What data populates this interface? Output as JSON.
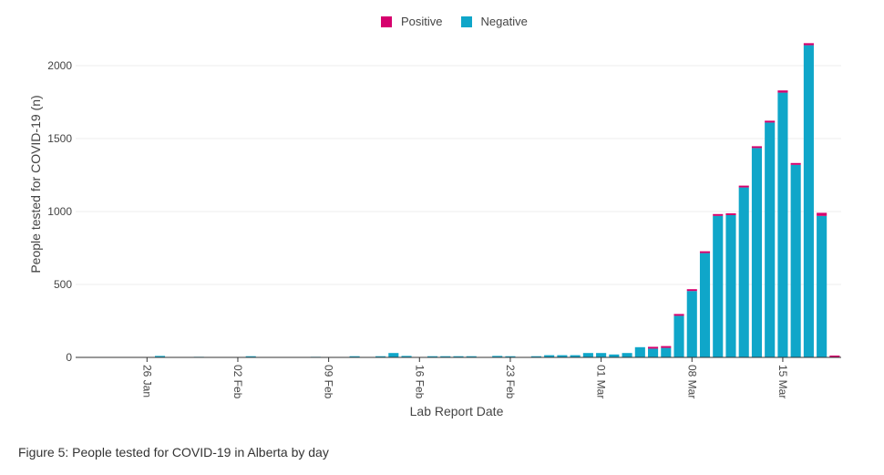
{
  "caption": "Figure 5: People tested for COVID-19 in Alberta by day",
  "colors": {
    "positive": "#d6006d",
    "negative": "#0fa6c9",
    "grid": "#eeeeee",
    "axis": "#333333"
  },
  "chart_data": {
    "type": "bar",
    "stacked": true,
    "xlabel": "Lab Report Date",
    "ylabel": "People tested for COVID-19 (n)",
    "ylim": [
      0,
      2200
    ],
    "yticks": [
      0,
      500,
      1000,
      1500,
      2000
    ],
    "legend": {
      "position": "top-center",
      "entries": [
        "Positive",
        "Negative"
      ]
    },
    "grid": true,
    "x_range": [
      "2020-01-21",
      "2020-03-19"
    ],
    "x_tick_labels": [
      {
        "date": "2020-01-26",
        "label": "26 Jan"
      },
      {
        "date": "2020-02-02",
        "label": "02 Feb"
      },
      {
        "date": "2020-02-09",
        "label": "09 Feb"
      },
      {
        "date": "2020-02-16",
        "label": "16 Feb"
      },
      {
        "date": "2020-02-23",
        "label": "23 Feb"
      },
      {
        "date": "2020-03-01",
        "label": "01 Mar"
      },
      {
        "date": "2020-03-08",
        "label": "08 Mar"
      },
      {
        "date": "2020-03-15",
        "label": "15 Mar"
      }
    ],
    "series": [
      {
        "name": "Positive",
        "color": "#d6006d",
        "x": [
          "2020-03-05",
          "2020-03-06",
          "2020-03-07",
          "2020-03-08",
          "2020-03-09",
          "2020-03-10",
          "2020-03-11",
          "2020-03-12",
          "2020-03-13",
          "2020-03-14",
          "2020-03-15",
          "2020-03-16",
          "2020-03-17",
          "2020-03-18",
          "2020-03-19"
        ],
        "values": [
          1,
          1,
          1,
          3,
          4,
          8,
          8,
          12,
          5,
          10,
          15,
          12,
          14,
          21,
          9
        ]
      },
      {
        "name": "Negative",
        "color": "#0fa6c9",
        "x": [
          "2020-01-22",
          "2020-01-23",
          "2020-01-24",
          "2020-01-25",
          "2020-01-26",
          "2020-01-27",
          "2020-01-28",
          "2020-01-29",
          "2020-01-30",
          "2020-01-31",
          "2020-02-01",
          "2020-02-02",
          "2020-02-03",
          "2020-02-04",
          "2020-02-05",
          "2020-02-06",
          "2020-02-07",
          "2020-02-08",
          "2020-02-09",
          "2020-02-10",
          "2020-02-11",
          "2020-02-12",
          "2020-02-13",
          "2020-02-14",
          "2020-02-15",
          "2020-02-16",
          "2020-02-17",
          "2020-02-18",
          "2020-02-19",
          "2020-02-20",
          "2020-02-21",
          "2020-02-22",
          "2020-02-23",
          "2020-02-24",
          "2020-02-25",
          "2020-02-26",
          "2020-02-27",
          "2020-02-28",
          "2020-02-29",
          "2020-03-01",
          "2020-03-02",
          "2020-03-03",
          "2020-03-04",
          "2020-03-05",
          "2020-03-06",
          "2020-03-07",
          "2020-03-08",
          "2020-03-09",
          "2020-03-10",
          "2020-03-11",
          "2020-03-12",
          "2020-03-13",
          "2020-03-14",
          "2020-03-15",
          "2020-03-16",
          "2020-03-17",
          "2020-03-18",
          "2020-03-19"
        ],
        "values": [
          2,
          3,
          2,
          3,
          2,
          10,
          3,
          2,
          4,
          2,
          2,
          3,
          8,
          2,
          2,
          3,
          2,
          4,
          2,
          2,
          8,
          3,
          8,
          30,
          10,
          2,
          8,
          8,
          8,
          8,
          3,
          10,
          8,
          3,
          8,
          15,
          15,
          15,
          30,
          30,
          20,
          30,
          70,
          60,
          65,
          285,
          455,
          715,
          970,
          975,
          1165,
          1435,
          1610,
          1815,
          1320,
          2140,
          970,
          0
        ]
      }
    ]
  }
}
